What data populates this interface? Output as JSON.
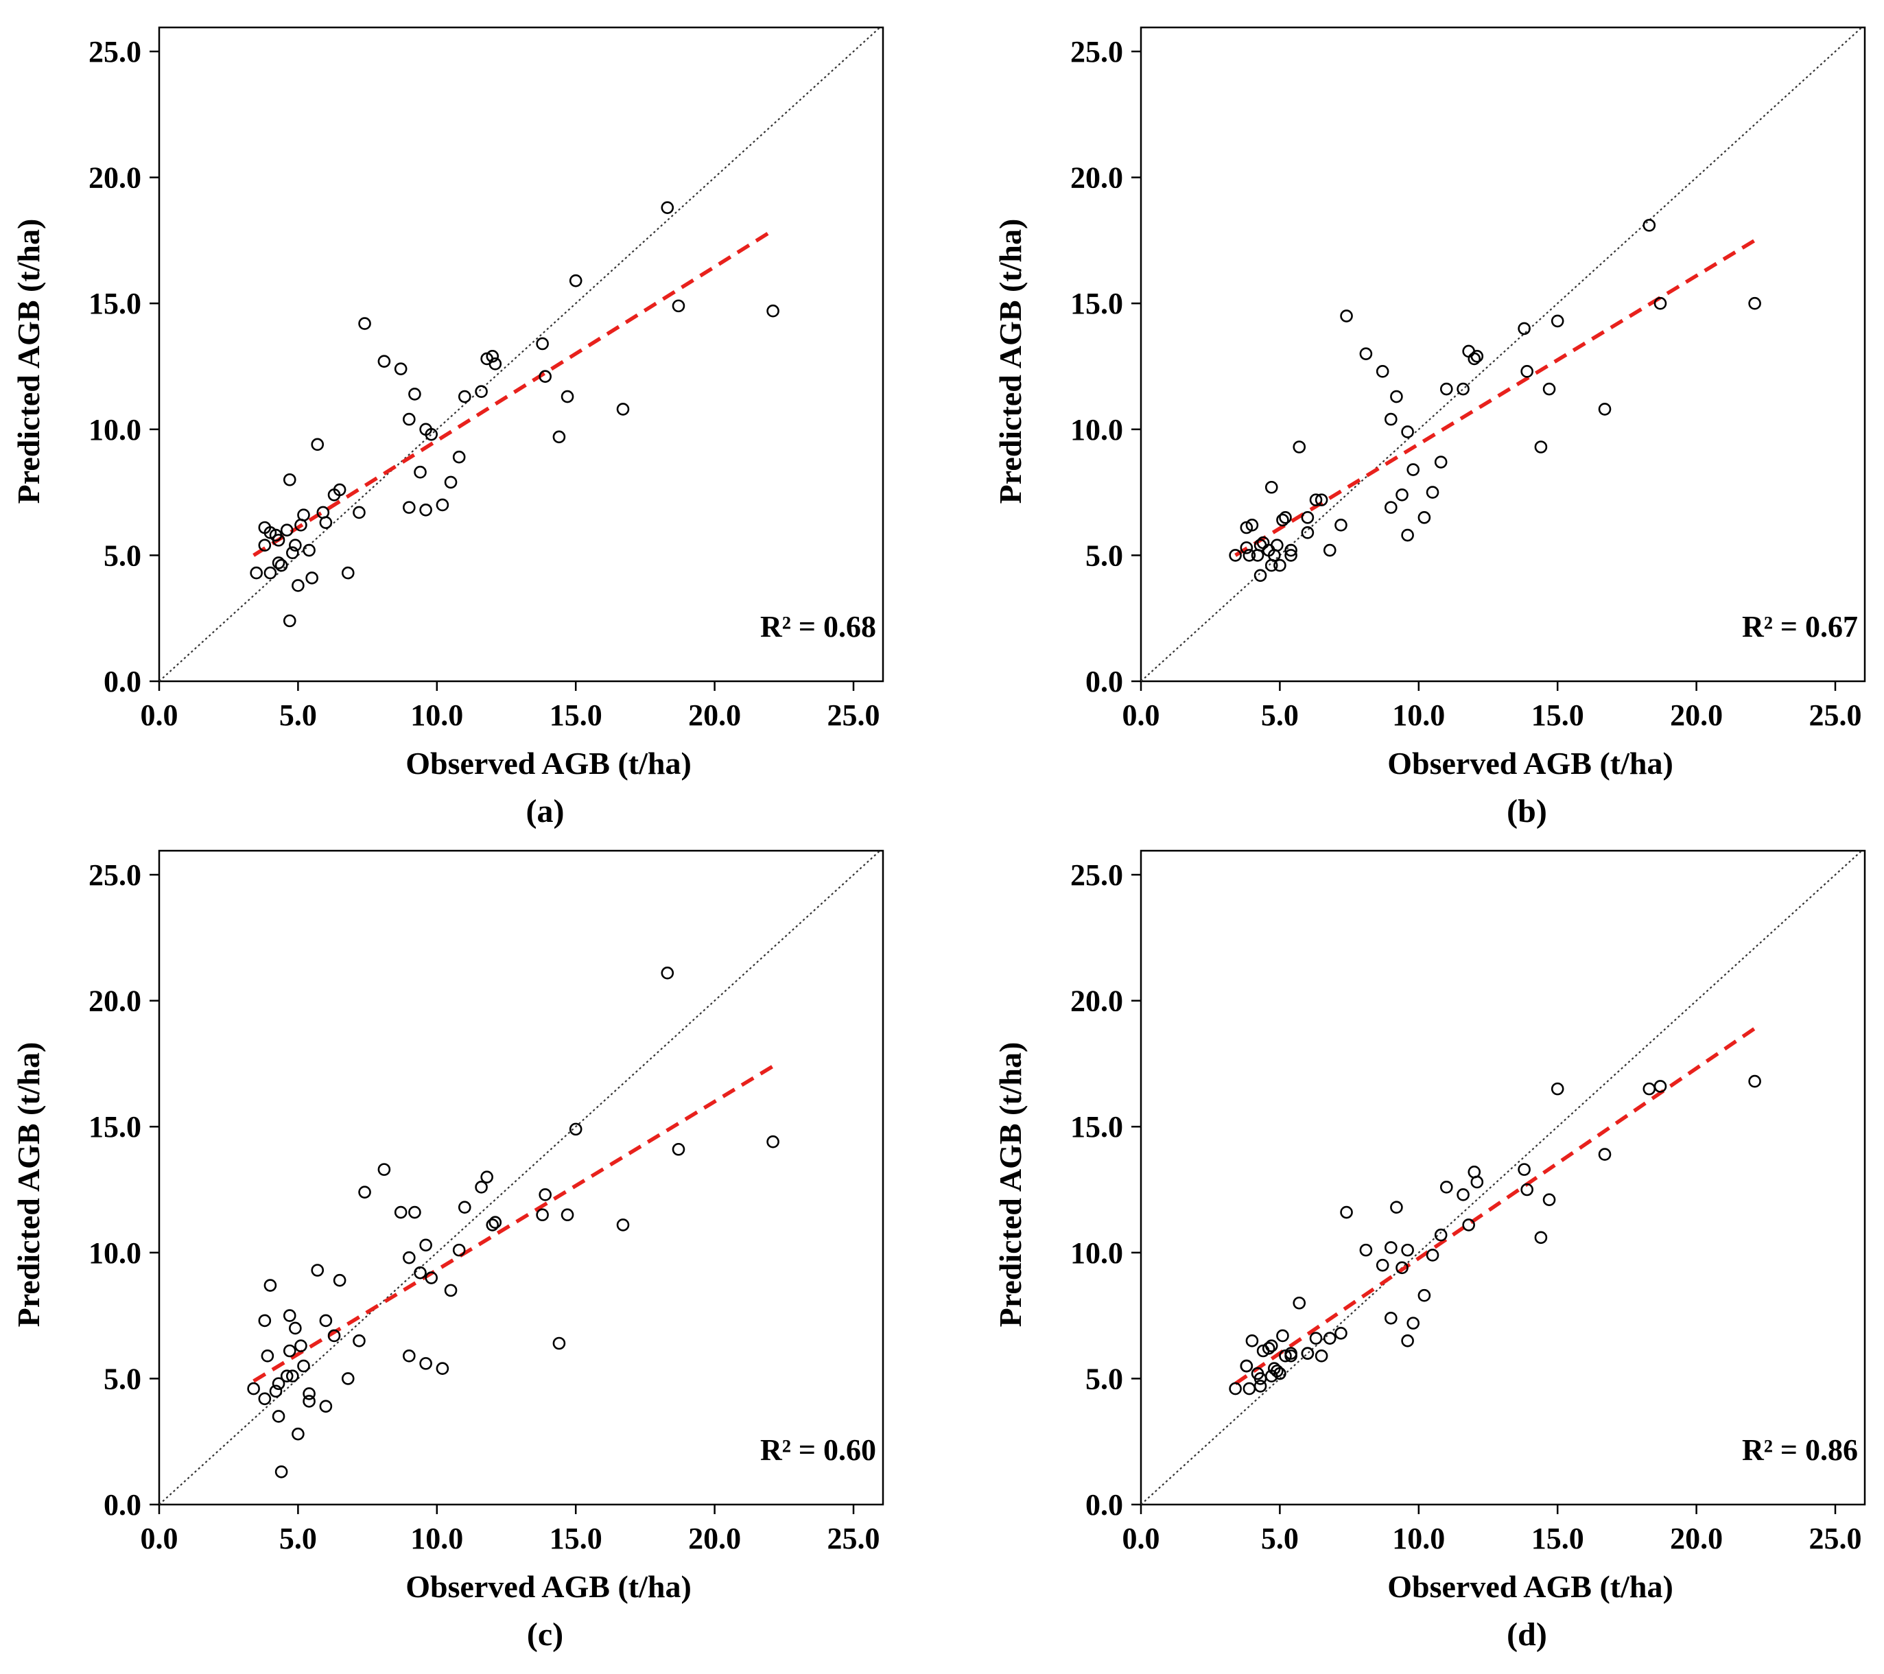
{
  "chart_data": [
    {
      "type": "scatter",
      "panel_label": "(a)",
      "xlabel": "Observed AGB (t/ha)",
      "ylabel": "Predicted AGB (t/ha)",
      "xlim": [
        0,
        25
      ],
      "ylim": [
        0,
        25
      ],
      "ticks": [
        "0.0",
        "5.0",
        "10.0",
        "15.0",
        "20.0",
        "25.0"
      ],
      "tick_values": [
        0,
        5,
        10,
        15,
        20,
        25
      ],
      "annotation": "R² = 0.68",
      "colors": {
        "points": "#000000",
        "identity": "#333333",
        "fit": "#e8211c"
      },
      "identity_line": [
        [
          0,
          0
        ],
        [
          26,
          26
        ]
      ],
      "fit_line": [
        [
          3.4,
          5.0
        ],
        [
          22.1,
          17.9
        ]
      ],
      "points": [
        [
          3.5,
          4.3
        ],
        [
          3.8,
          5.4
        ],
        [
          3.8,
          6.1
        ],
        [
          4.0,
          4.3
        ],
        [
          4.0,
          5.9
        ],
        [
          4.2,
          5.8
        ],
        [
          4.3,
          4.7
        ],
        [
          4.3,
          5.6
        ],
        [
          4.4,
          4.6
        ],
        [
          4.6,
          6.0
        ],
        [
          4.7,
          8.0
        ],
        [
          4.7,
          2.4
        ],
        [
          4.8,
          5.1
        ],
        [
          4.9,
          5.4
        ],
        [
          5.0,
          3.8
        ],
        [
          5.1,
          6.2
        ],
        [
          5.2,
          6.6
        ],
        [
          5.4,
          5.2
        ],
        [
          5.5,
          4.1
        ],
        [
          5.7,
          9.4
        ],
        [
          5.9,
          6.7
        ],
        [
          6.0,
          6.3
        ],
        [
          6.3,
          7.4
        ],
        [
          6.5,
          7.6
        ],
        [
          6.8,
          4.3
        ],
        [
          7.2,
          6.7
        ],
        [
          7.4,
          14.2
        ],
        [
          8.1,
          12.7
        ],
        [
          8.7,
          12.4
        ],
        [
          9.0,
          10.4
        ],
        [
          9.0,
          6.9
        ],
        [
          9.2,
          11.4
        ],
        [
          9.4,
          8.3
        ],
        [
          9.6,
          10.0
        ],
        [
          9.6,
          6.8
        ],
        [
          9.8,
          9.8
        ],
        [
          10.2,
          7.0
        ],
        [
          10.5,
          7.9
        ],
        [
          10.8,
          8.9
        ],
        [
          11.0,
          11.3
        ],
        [
          11.6,
          11.5
        ],
        [
          11.8,
          12.8
        ],
        [
          12.0,
          12.9
        ],
        [
          12.1,
          12.6
        ],
        [
          13.8,
          13.4
        ],
        [
          13.9,
          12.1
        ],
        [
          14.4,
          9.7
        ],
        [
          14.7,
          11.3
        ],
        [
          15.0,
          15.9
        ],
        [
          16.7,
          10.8
        ],
        [
          18.3,
          18.8
        ],
        [
          18.7,
          14.9
        ],
        [
          22.1,
          14.7
        ]
      ]
    },
    {
      "type": "scatter",
      "panel_label": "(b)",
      "xlabel": "Observed AGB (t/ha)",
      "ylabel": "Predicted AGB (t/ha)",
      "xlim": [
        0,
        25
      ],
      "ylim": [
        0,
        25
      ],
      "ticks": [
        "0.0",
        "5.0",
        "10.0",
        "15.0",
        "20.0",
        "25.0"
      ],
      "tick_values": [
        0,
        5,
        10,
        15,
        20,
        25
      ],
      "annotation": "R² = 0.67",
      "colors": {
        "points": "#000000",
        "identity": "#333333",
        "fit": "#e8211c"
      },
      "identity_line": [
        [
          0,
          0
        ],
        [
          26,
          26
        ]
      ],
      "fit_line": [
        [
          3.4,
          5.0
        ],
        [
          22.1,
          17.5
        ]
      ],
      "points": [
        [
          3.4,
          5.0
        ],
        [
          3.8,
          5.3
        ],
        [
          3.8,
          6.1
        ],
        [
          3.9,
          5.0
        ],
        [
          4.0,
          6.2
        ],
        [
          4.2,
          5.0
        ],
        [
          4.3,
          5.4
        ],
        [
          4.3,
          4.2
        ],
        [
          4.4,
          5.5
        ],
        [
          4.6,
          5.2
        ],
        [
          4.7,
          7.7
        ],
        [
          4.7,
          4.6
        ],
        [
          4.8,
          5.0
        ],
        [
          4.9,
          5.4
        ],
        [
          5.0,
          4.6
        ],
        [
          5.1,
          6.4
        ],
        [
          5.2,
          6.5
        ],
        [
          5.4,
          5.2
        ],
        [
          5.4,
          5.0
        ],
        [
          5.7,
          9.3
        ],
        [
          6.0,
          6.5
        ],
        [
          6.0,
          5.9
        ],
        [
          6.3,
          7.2
        ],
        [
          6.5,
          7.2
        ],
        [
          6.8,
          5.2
        ],
        [
          7.2,
          6.2
        ],
        [
          7.4,
          14.5
        ],
        [
          8.1,
          13.0
        ],
        [
          8.7,
          12.3
        ],
        [
          9.0,
          10.4
        ],
        [
          9.0,
          6.9
        ],
        [
          9.2,
          11.3
        ],
        [
          9.4,
          7.4
        ],
        [
          9.6,
          9.9
        ],
        [
          9.6,
          5.8
        ],
        [
          9.8,
          8.4
        ],
        [
          10.2,
          6.5
        ],
        [
          10.5,
          7.5
        ],
        [
          10.8,
          8.7
        ],
        [
          11.0,
          11.6
        ],
        [
          11.6,
          11.6
        ],
        [
          11.8,
          13.1
        ],
        [
          12.0,
          12.8
        ],
        [
          12.1,
          12.9
        ],
        [
          13.8,
          14.0
        ],
        [
          13.9,
          12.3
        ],
        [
          14.4,
          9.3
        ],
        [
          14.7,
          11.6
        ],
        [
          15.0,
          14.3
        ],
        [
          16.7,
          10.8
        ],
        [
          18.3,
          18.1
        ],
        [
          18.7,
          15.0
        ],
        [
          22.1,
          15.0
        ]
      ]
    },
    {
      "type": "scatter",
      "panel_label": "(c)",
      "xlabel": "Observed AGB (t/ha)",
      "ylabel": "Predicted AGB (t/ha)",
      "xlim": [
        0,
        25
      ],
      "ylim": [
        0,
        25
      ],
      "ticks": [
        "0.0",
        "5.0",
        "10.0",
        "15.0",
        "20.0",
        "25.0"
      ],
      "tick_values": [
        0,
        5,
        10,
        15,
        20,
        25
      ],
      "annotation": "R² = 0.60",
      "colors": {
        "points": "#000000",
        "identity": "#333333",
        "fit": "#e8211c"
      },
      "identity_line": [
        [
          0,
          0
        ],
        [
          26,
          26
        ]
      ],
      "fit_line": [
        [
          3.4,
          4.9
        ],
        [
          22.1,
          17.4
        ]
      ],
      "points": [
        [
          3.4,
          4.6
        ],
        [
          3.8,
          7.3
        ],
        [
          3.8,
          4.2
        ],
        [
          3.9,
          5.9
        ],
        [
          4.0,
          8.7
        ],
        [
          4.2,
          4.5
        ],
        [
          4.3,
          4.8
        ],
        [
          4.3,
          3.5
        ],
        [
          4.4,
          1.3
        ],
        [
          4.6,
          5.1
        ],
        [
          4.7,
          7.5
        ],
        [
          4.7,
          6.1
        ],
        [
          4.8,
          5.1
        ],
        [
          4.9,
          7.0
        ],
        [
          5.0,
          2.8
        ],
        [
          5.1,
          6.3
        ],
        [
          5.2,
          5.5
        ],
        [
          5.4,
          4.4
        ],
        [
          5.4,
          4.1
        ],
        [
          5.7,
          9.3
        ],
        [
          6.0,
          7.3
        ],
        [
          6.0,
          3.9
        ],
        [
          6.3,
          6.7
        ],
        [
          6.5,
          8.9
        ],
        [
          6.8,
          5.0
        ],
        [
          7.2,
          6.5
        ],
        [
          7.4,
          12.4
        ],
        [
          8.1,
          13.3
        ],
        [
          8.7,
          11.6
        ],
        [
          9.0,
          9.8
        ],
        [
          9.0,
          5.9
        ],
        [
          9.2,
          11.6
        ],
        [
          9.4,
          9.2
        ],
        [
          9.6,
          10.3
        ],
        [
          9.6,
          5.6
        ],
        [
          9.8,
          9.0
        ],
        [
          10.2,
          5.4
        ],
        [
          10.5,
          8.5
        ],
        [
          10.8,
          10.1
        ],
        [
          11.0,
          11.8
        ],
        [
          11.6,
          12.6
        ],
        [
          11.8,
          13.0
        ],
        [
          12.0,
          11.1
        ],
        [
          12.1,
          11.2
        ],
        [
          13.8,
          11.5
        ],
        [
          13.9,
          12.3
        ],
        [
          14.4,
          6.4
        ],
        [
          14.7,
          11.5
        ],
        [
          15.0,
          14.9
        ],
        [
          16.7,
          11.1
        ],
        [
          18.3,
          21.1
        ],
        [
          18.7,
          14.1
        ],
        [
          22.1,
          14.4
        ]
      ]
    },
    {
      "type": "scatter",
      "panel_label": "(d)",
      "xlabel": "Observed AGB (t/ha)",
      "ylabel": "Predicted AGB (t/ha)",
      "xlim": [
        0,
        25
      ],
      "ylim": [
        0,
        25
      ],
      "ticks": [
        "0.0",
        "5.0",
        "10.0",
        "15.0",
        "20.0",
        "25.0"
      ],
      "tick_values": [
        0,
        5,
        10,
        15,
        20,
        25
      ],
      "annotation": "R² = 0.86",
      "colors": {
        "points": "#000000",
        "identity": "#333333",
        "fit": "#e8211c"
      },
      "identity_line": [
        [
          0,
          0
        ],
        [
          26,
          26
        ]
      ],
      "fit_line": [
        [
          3.4,
          4.8
        ],
        [
          22.1,
          18.9
        ]
      ],
      "points": [
        [
          3.4,
          4.6
        ],
        [
          3.8,
          5.5
        ],
        [
          3.8,
          5.5
        ],
        [
          3.9,
          4.6
        ],
        [
          4.0,
          6.5
        ],
        [
          4.2,
          5.2
        ],
        [
          4.3,
          4.7
        ],
        [
          4.3,
          5.0
        ],
        [
          4.4,
          6.1
        ],
        [
          4.6,
          6.2
        ],
        [
          4.7,
          6.3
        ],
        [
          4.7,
          5.1
        ],
        [
          4.8,
          5.4
        ],
        [
          4.9,
          5.3
        ],
        [
          5.0,
          5.2
        ],
        [
          5.1,
          6.7
        ],
        [
          5.2,
          5.9
        ],
        [
          5.4,
          5.9
        ],
        [
          5.4,
          6.0
        ],
        [
          5.7,
          8.0
        ],
        [
          6.0,
          6.0
        ],
        [
          6.0,
          6.0
        ],
        [
          6.3,
          6.6
        ],
        [
          6.5,
          5.9
        ],
        [
          6.8,
          6.6
        ],
        [
          7.2,
          6.8
        ],
        [
          7.4,
          11.6
        ],
        [
          8.1,
          10.1
        ],
        [
          8.7,
          9.5
        ],
        [
          9.0,
          10.2
        ],
        [
          9.0,
          7.4
        ],
        [
          9.2,
          11.8
        ],
        [
          9.4,
          9.4
        ],
        [
          9.6,
          10.1
        ],
        [
          9.6,
          6.5
        ],
        [
          9.8,
          7.2
        ],
        [
          10.2,
          8.3
        ],
        [
          10.5,
          9.9
        ],
        [
          10.8,
          10.7
        ],
        [
          11.0,
          12.6
        ],
        [
          11.6,
          12.3
        ],
        [
          11.8,
          11.1
        ],
        [
          12.0,
          13.2
        ],
        [
          12.1,
          12.8
        ],
        [
          13.8,
          13.3
        ],
        [
          13.9,
          12.5
        ],
        [
          14.4,
          10.6
        ],
        [
          14.7,
          12.1
        ],
        [
          15.0,
          16.5
        ],
        [
          16.7,
          13.9
        ],
        [
          18.3,
          16.5
        ],
        [
          18.7,
          16.6
        ],
        [
          22.1,
          16.8
        ]
      ]
    }
  ]
}
